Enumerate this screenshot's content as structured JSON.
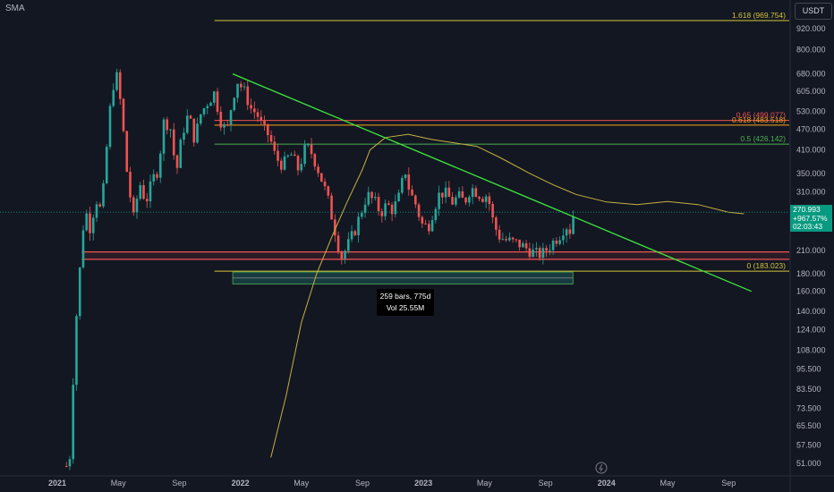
{
  "indicator_label": "SMA",
  "currency": "USDT",
  "last_price": {
    "value": "270.993",
    "change": "+967.57%",
    "countdown": "02:03:43"
  },
  "measure": {
    "bars": "259 bars, 775d",
    "vol": "Vol 25.55M"
  },
  "colors": {
    "background": "#131722",
    "up": "#26a69a",
    "down": "#ef5350",
    "sma": "#c7b13f",
    "trendline": "#3ee63e",
    "fib_zero": "#d4c43a"
  },
  "chart_data": {
    "type": "candlestick",
    "yscale": "log",
    "ylim": [
      48,
      1060
    ],
    "x_labels": [
      "2021",
      "May",
      "Sep",
      "2022",
      "May",
      "Sep",
      "2023",
      "May",
      "Sep",
      "2024",
      "May",
      "Sep"
    ],
    "y_ticks": [
      "920.000",
      "800.000",
      "680.000",
      "605.000",
      "530.000",
      "470.000",
      "410.000",
      "350.000",
      "310.000",
      "210.000",
      "180.000",
      "160.000",
      "140.000",
      "124.000",
      "108.000",
      "95.500",
      "83.500",
      "73.500",
      "65.500",
      "57.500",
      "51.000"
    ],
    "fib_levels": [
      {
        "label": "1.618 (969.754)",
        "value": 969.754,
        "color": "#d4c43a"
      },
      {
        "label": "0.65 (499.077)",
        "value": 499.077,
        "color": "#ef5350"
      },
      {
        "label": "0.618 (483.518)",
        "value": 483.518,
        "color": "#f7a21b"
      },
      {
        "label": "0.5 (426.142)",
        "value": 426.142,
        "color": "#4caf50"
      },
      {
        "label": "0 (183.023)",
        "value": 183.023,
        "color": "#d4c43a"
      }
    ],
    "support_zone": [
      198,
      208
    ],
    "trendline": {
      "from_month": 11.5,
      "from_value": 680,
      "to_month": 45.5,
      "to_value": 160
    },
    "sma_path": [
      [
        14.0,
        53
      ],
      [
        15.0,
        80
      ],
      [
        16.0,
        130
      ],
      [
        17.0,
        180
      ],
      [
        18.0,
        230
      ],
      [
        19.0,
        290
      ],
      [
        20.0,
        360
      ],
      [
        20.5,
        410
      ],
      [
        21.5,
        445
      ],
      [
        23.0,
        455
      ],
      [
        24.5,
        440
      ],
      [
        26.0,
        430
      ],
      [
        27.5,
        420
      ],
      [
        29.0,
        390
      ],
      [
        31.0,
        350
      ],
      [
        32.5,
        325
      ],
      [
        34.0,
        305
      ],
      [
        36.0,
        290
      ],
      [
        38.0,
        285
      ],
      [
        40.0,
        291
      ],
      [
        42.0,
        285
      ],
      [
        44.0,
        271
      ],
      [
        45.0,
        268
      ]
    ],
    "candle_anchors": [
      [
        0.6,
        50
      ],
      [
        0.9,
        55
      ],
      [
        1.1,
        110
      ],
      [
        1.5,
        190
      ],
      [
        1.8,
        280
      ],
      [
        2.2,
        240
      ],
      [
        2.5,
        300
      ],
      [
        2.9,
        270
      ],
      [
        3.3,
        450
      ],
      [
        3.5,
        560
      ],
      [
        3.8,
        690
      ],
      [
        4.0,
        640
      ],
      [
        4.3,
        480
      ],
      [
        4.6,
        340
      ],
      [
        5.0,
        260
      ],
      [
        5.4,
        330
      ],
      [
        5.8,
        290
      ],
      [
        6.3,
        340
      ],
      [
        6.6,
        360
      ],
      [
        7.0,
        500
      ],
      [
        7.4,
        480
      ],
      [
        7.8,
        350
      ],
      [
        8.2,
        460
      ],
      [
        8.6,
        520
      ],
      [
        9.0,
        440
      ],
      [
        9.4,
        520
      ],
      [
        9.8,
        560
      ],
      [
        10.3,
        600
      ],
      [
        10.7,
        500
      ],
      [
        11.1,
        460
      ],
      [
        11.5,
        580
      ],
      [
        11.8,
        650
      ],
      [
        12.3,
        600
      ],
      [
        12.7,
        540
      ],
      [
        13.1,
        520
      ],
      [
        13.5,
        470
      ],
      [
        13.9,
        450
      ],
      [
        14.3,
        390
      ],
      [
        14.8,
        370
      ],
      [
        15.3,
        400
      ],
      [
        15.8,
        360
      ],
      [
        16.3,
        420
      ],
      [
        16.7,
        400
      ],
      [
        17.2,
        350
      ],
      [
        17.7,
        300
      ],
      [
        18.2,
        240
      ],
      [
        18.6,
        200
      ],
      [
        19.0,
        215
      ],
      [
        19.5,
        240
      ],
      [
        19.9,
        270
      ],
      [
        20.3,
        305
      ],
      [
        20.8,
        290
      ],
      [
        21.2,
        270
      ],
      [
        21.6,
        285
      ],
      [
        22.0,
        275
      ],
      [
        22.4,
        300
      ],
      [
        22.8,
        360
      ],
      [
        23.1,
        310
      ],
      [
        23.5,
        285
      ],
      [
        23.9,
        250
      ],
      [
        24.3,
        245
      ],
      [
        24.7,
        280
      ],
      [
        25.1,
        310
      ],
      [
        25.5,
        305
      ],
      [
        25.9,
        290
      ],
      [
        26.3,
        300
      ],
      [
        26.7,
        290
      ],
      [
        27.1,
        320
      ],
      [
        27.5,
        310
      ],
      [
        27.9,
        300
      ],
      [
        28.2,
        305
      ],
      [
        28.6,
        250
      ],
      [
        29.0,
        230
      ],
      [
        29.4,
        225
      ],
      [
        29.8,
        222
      ],
      [
        30.2,
        220
      ],
      [
        30.6,
        215
      ],
      [
        31.0,
        210
      ],
      [
        31.4,
        205
      ],
      [
        31.8,
        205
      ],
      [
        32.2,
        215
      ],
      [
        32.6,
        225
      ],
      [
        33.0,
        235
      ],
      [
        33.3,
        250
      ],
      [
        33.6,
        240
      ],
      [
        33.8,
        265
      ],
      [
        34.0,
        271
      ]
    ],
    "last_x_month": 34.0,
    "measure_range_month": [
      11.5,
      33.8
    ]
  }
}
